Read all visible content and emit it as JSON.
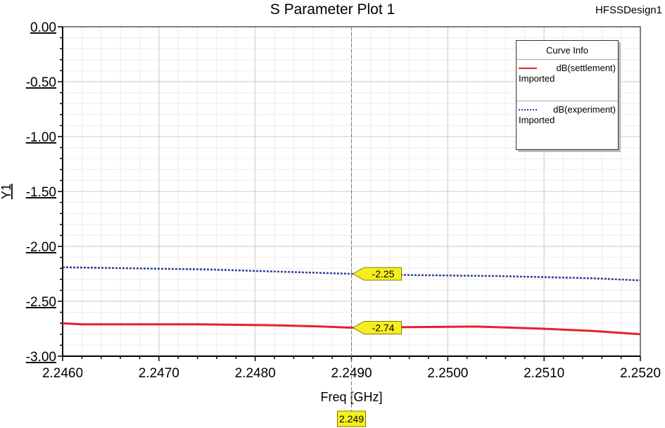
{
  "chart_data": {
    "type": "line",
    "title": "S Parameter Plot 1",
    "design_label": "HFSSDesign1",
    "xlabel": "Freq [GHz]",
    "ylabel": "Y1",
    "xlim": [
      2.246,
      2.252
    ],
    "ylim": [
      -3.0,
      0.0
    ],
    "x_ticks": [
      "2.2460",
      "2.2470",
      "2.2480",
      "2.2490",
      "2.2500",
      "2.2510",
      "2.2520"
    ],
    "y_ticks": [
      "0.00",
      "-0.50",
      "-1.00",
      "-1.50",
      "-2.00",
      "-2.50",
      "-3.00"
    ],
    "grid": true,
    "legend": {
      "title": "Curve Info",
      "placement": "top-right"
    },
    "series": [
      {
        "name": "dB(settlement)",
        "source": "Imported",
        "color": "#e8202a",
        "style": "solid",
        "x": [
          2.246,
          2.2462,
          2.2474,
          2.2483,
          2.2487,
          2.249,
          2.2503,
          2.251,
          2.2515,
          2.252
        ],
        "y": [
          -2.7,
          -2.71,
          -2.71,
          -2.72,
          -2.73,
          -2.74,
          -2.73,
          -2.75,
          -2.77,
          -2.8
        ]
      },
      {
        "name": "dB(experiment)",
        "source": "Imported",
        "color": "#2b3f9e",
        "style": "dotted",
        "x": [
          2.246,
          2.2475,
          2.249,
          2.2495,
          2.2505,
          2.2515,
          2.252
        ],
        "y": [
          -2.19,
          -2.21,
          -2.25,
          -2.26,
          -2.27,
          -2.29,
          -2.31
        ]
      }
    ],
    "marker": {
      "x_label": "2.249",
      "x": 2.249,
      "values": [
        {
          "series": "dB(experiment)",
          "y": -2.25,
          "label": "-2.25"
        },
        {
          "series": "dB(settlement)",
          "y": -2.74,
          "label": "-2.74"
        }
      ]
    }
  }
}
